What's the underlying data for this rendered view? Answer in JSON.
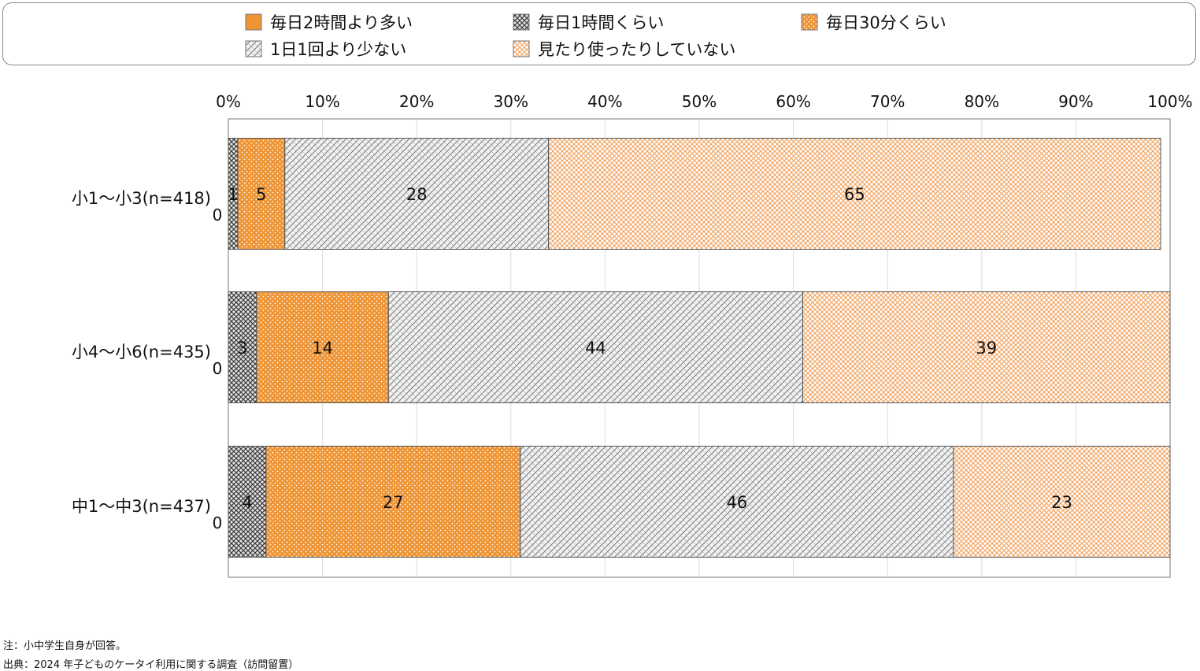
{
  "chart_data": {
    "type": "bar",
    "orientation": "horizontal",
    "stacked": true,
    "categories": [
      "小1～小3(n=418)",
      "小4～小6(n=435)",
      "中1～中3(n=437)"
    ],
    "series": [
      {
        "name": "毎日2時間より多い",
        "values": [
          0,
          0,
          0
        ],
        "color": "#EE9433",
        "pattern": "solid"
      },
      {
        "name": "毎日1時間くらい",
        "values": [
          1,
          3,
          4
        ],
        "color": "#9A9A9A",
        "pattern": "crosshatch"
      },
      {
        "name": "毎日30分くらい",
        "values": [
          5,
          14,
          27
        ],
        "color": "#EE9433",
        "pattern": "dots"
      },
      {
        "name": "1日1回より少ない",
        "values": [
          28,
          44,
          46
        ],
        "color": "#BBBBBB",
        "pattern": "diagonal"
      },
      {
        "name": "見たり使ったりしていない",
        "values": [
          65,
          39,
          23
        ],
        "color": "#F6BC86",
        "pattern": "lightcross"
      }
    ],
    "xlim": [
      0,
      100
    ],
    "xticks": [
      "0%",
      "10%",
      "20%",
      "30%",
      "40%",
      "50%",
      "60%",
      "70%",
      "80%",
      "90%",
      "100%"
    ],
    "grid": true,
    "legend_position": "top"
  },
  "notes": [
    "注：小中学生自身が回答。",
    "出典：2024 年子どものケータイ利用に関する調査（訪問留置）"
  ]
}
